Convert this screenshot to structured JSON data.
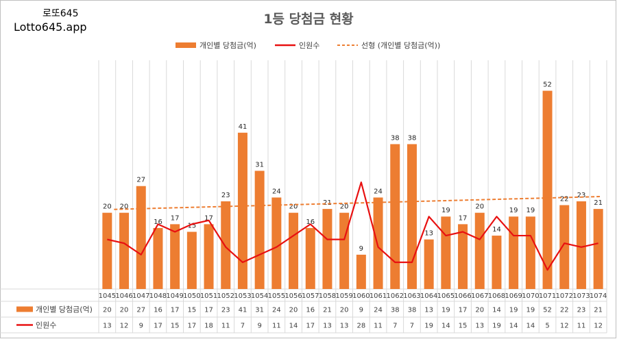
{
  "brand": {
    "line1": "로또645",
    "line2": "Lotto645.app"
  },
  "colors": {
    "bar": "#ED7D31",
    "line": "#E81010",
    "trend": "#ED7D31",
    "grid": "#d9d9d9",
    "text": "#404040"
  },
  "chart_data": {
    "type": "bar",
    "title": "1등 당첨금 현황",
    "categories": [
      "1045",
      "1046",
      "1047",
      "1048",
      "1049",
      "1050",
      "1051",
      "1052",
      "1053",
      "1054",
      "1055",
      "1056",
      "1057",
      "1058",
      "1059",
      "1060",
      "1061",
      "1062",
      "1063",
      "1064",
      "1065",
      "1066",
      "1067",
      "1068",
      "1069",
      "1070",
      "1071",
      "1072",
      "1073",
      "1074"
    ],
    "series": [
      {
        "name": "개인별 당첨금(억)",
        "kind": "bar",
        "values": [
          20,
          20,
          27,
          16,
          17,
          15,
          17,
          23,
          41,
          31,
          24,
          20,
          16,
          21,
          20,
          9,
          24,
          38,
          38,
          13,
          19,
          17,
          20,
          14,
          19,
          19,
          52,
          22,
          23,
          21
        ]
      },
      {
        "name": "인원수",
        "kind": "line",
        "values": [
          13,
          12,
          9,
          17,
          15,
          17,
          18,
          11,
          7,
          9,
          11,
          14,
          17,
          13,
          13,
          28,
          11,
          7,
          7,
          19,
          14,
          15,
          13,
          19,
          14,
          14,
          5,
          12,
          11,
          12
        ]
      }
    ],
    "trendline": {
      "name": "선형 (개인별 당첨금(억))",
      "of": "개인별 당첨금(억)",
      "type": "linear"
    },
    "ylim": [
      0,
      60
    ],
    "xlabel": "",
    "ylabel": "",
    "legend": "top",
    "data_table": true,
    "grid": "vertical"
  }
}
